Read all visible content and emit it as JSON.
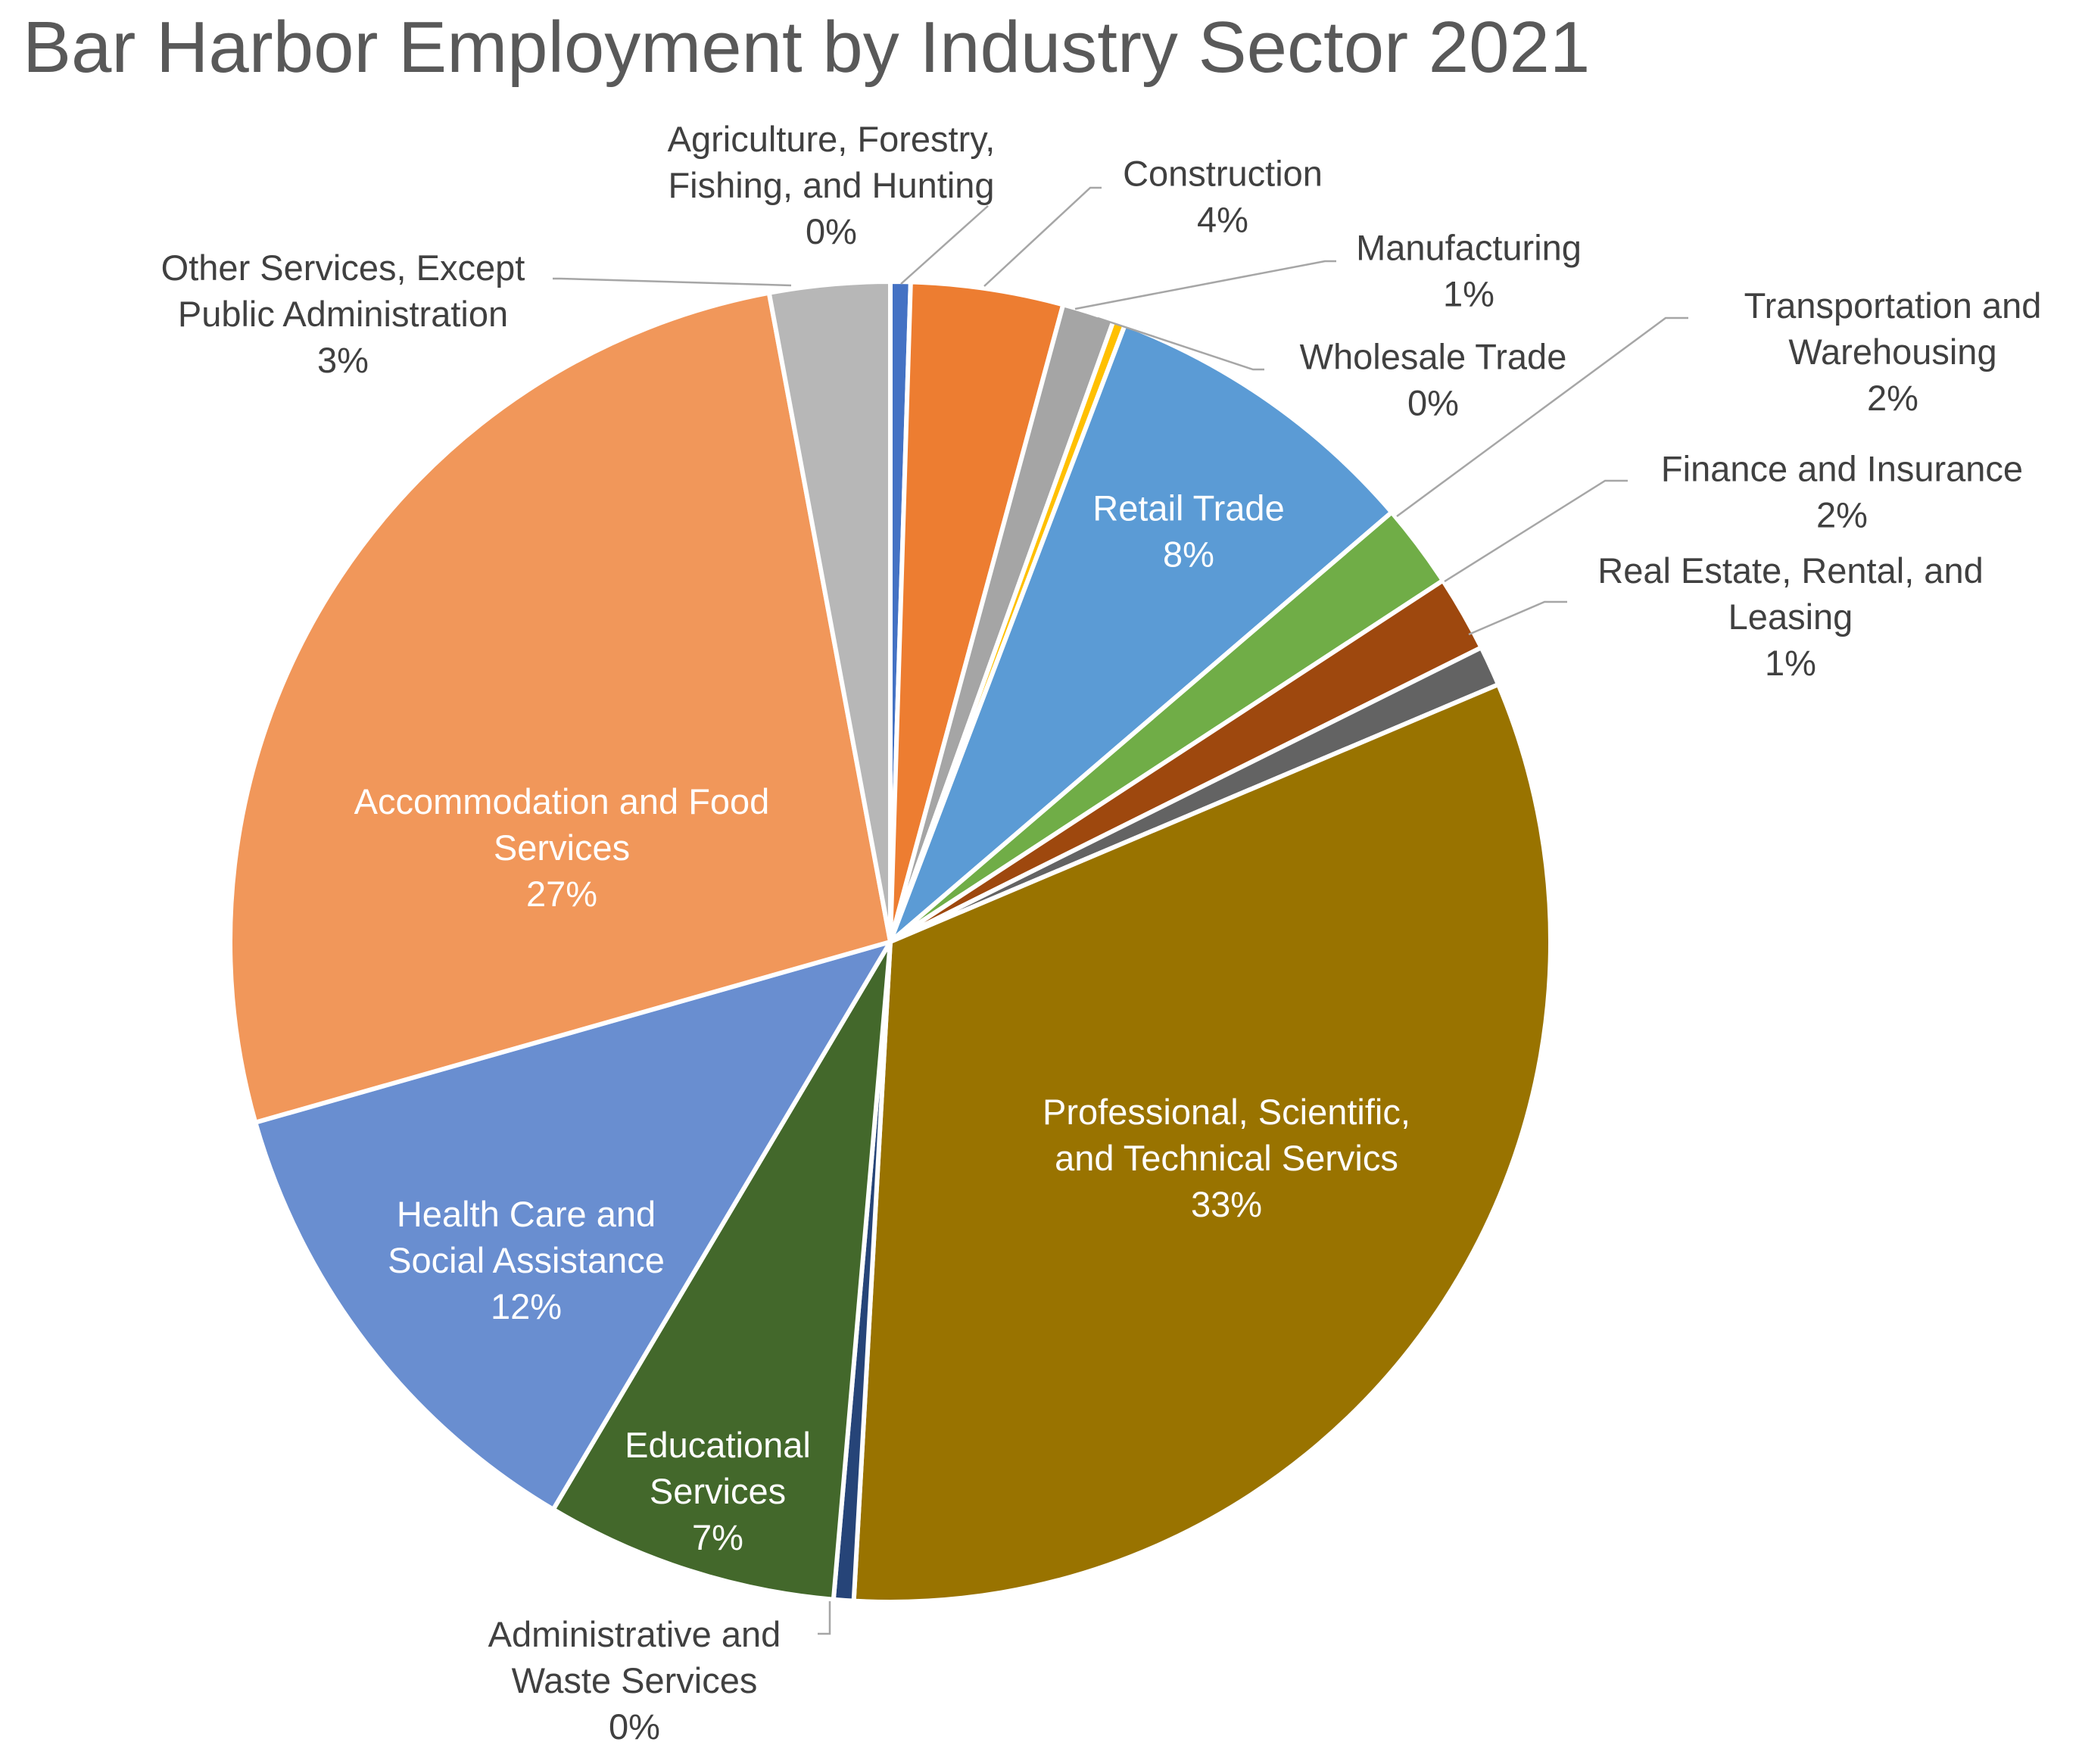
{
  "chart_data": {
    "type": "pie",
    "title": "Bar Harbor Employment by Industry Sector 2021",
    "slices": [
      {
        "label": "Agriculture, Forestry, Fishing, and Hunting",
        "label_lines": [
          "Agriculture, Forestry,",
          "Fishing, and Hunting"
        ],
        "value": 0.5,
        "percent_label": "0%",
        "color": "#4472C4",
        "label_color": "#404040"
      },
      {
        "label": "Construction",
        "label_lines": [
          "Construction"
        ],
        "value": 3.8,
        "percent_label": "4%",
        "color": "#ED7D31",
        "label_color": "#404040"
      },
      {
        "label": "Manufacturing",
        "label_lines": [
          "Manufacturing"
        ],
        "value": 1.3,
        "percent_label": "1%",
        "color": "#A5A5A5",
        "label_color": "#404040"
      },
      {
        "label": "Wholesale Trade",
        "label_lines": [
          "Wholesale Trade"
        ],
        "value": 0.3,
        "percent_label": "0%",
        "color": "#FFC000",
        "label_color": "#404040"
      },
      {
        "label": "Retail Trade",
        "label_lines": [
          "Retail Trade"
        ],
        "value": 8.1,
        "percent_label": "8%",
        "color": "#5B9BD5",
        "label_color": "#FFFFFF"
      },
      {
        "label": "Transportation and Warehousing",
        "label_lines": [
          "Transportation and",
          "Warehousing"
        ],
        "value": 2.1,
        "percent_label": "2%",
        "color": "#70AD47",
        "label_color": "#404040"
      },
      {
        "label": "Finance and Insurance",
        "label_lines": [
          "Finance and Insurance"
        ],
        "value": 1.9,
        "percent_label": "2%",
        "color": "#9E480E",
        "label_color": "#404040"
      },
      {
        "label": "Real Estate, Rental, and Leasing",
        "label_lines": [
          "Real Estate, Rental, and",
          "Leasing"
        ],
        "value": 1.0,
        "percent_label": "1%",
        "color": "#636363",
        "label_color": "#404040"
      },
      {
        "label": "Professional, Scientific, and Technical Servics",
        "label_lines": [
          "Professional, Scientific,",
          "and Technical Servics"
        ],
        "value": 32.9,
        "percent_label": "33%",
        "color": "#997300",
        "label_color": "#FFFFFF"
      },
      {
        "label": "Administrative and Waste Services",
        "label_lines": [
          "Administrative and",
          "Waste Services"
        ],
        "value": 0.5,
        "percent_label": "0%",
        "color": "#264478",
        "label_color": "#404040"
      },
      {
        "label": "Educational Services",
        "label_lines": [
          "Educational",
          "Services"
        ],
        "value": 7.3,
        "percent_label": "7%",
        "color": "#43682B",
        "label_color": "#FFFFFF"
      },
      {
        "label": "Health Care and Social Assistance",
        "label_lines": [
          "Health Care and",
          "Social Assistance"
        ],
        "value": 12.3,
        "percent_label": "12%",
        "color": "#698ED0",
        "label_color": "#FFFFFF"
      },
      {
        "label": "Accommodation and Food Services",
        "label_lines": [
          "Accommodation and Food",
          "Services"
        ],
        "value": 27.0,
        "percent_label": "27%",
        "color": "#F1975A",
        "label_color": "#FFFFFF"
      },
      {
        "label": "Other Services, Except Public Administration",
        "label_lines": [
          "Other Services, Except",
          "Public Administration"
        ],
        "value": 3.0,
        "percent_label": "3%",
        "color": "#B7B7B7",
        "label_color": "#404040"
      }
    ],
    "legend": "none"
  }
}
